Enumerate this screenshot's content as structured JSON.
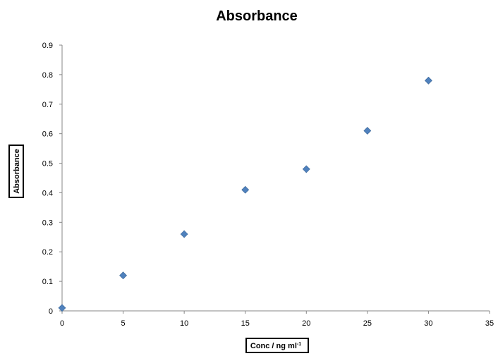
{
  "chart_data": {
    "type": "scatter",
    "title": "Absorbance",
    "xlabel": "Conc / ng ml",
    "xlabel_superscript": "-1",
    "ylabel": "Absorbance",
    "xlim": [
      0,
      35
    ],
    "ylim": [
      0,
      0.9
    ],
    "x_ticks": [
      "0",
      "5",
      "10",
      "15",
      "20",
      "25",
      "30",
      "35"
    ],
    "y_ticks": [
      "0",
      "0.1",
      "0.2",
      "0.3",
      "0.4",
      "0.5",
      "0.6",
      "0.7",
      "0.8",
      "0.9"
    ],
    "grid": false,
    "legend": "none",
    "marker": "diamond",
    "series": [
      {
        "color": "#4f81bd",
        "points": [
          {
            "x": 0,
            "y": 0.01
          },
          {
            "x": 5,
            "y": 0.12
          },
          {
            "x": 10,
            "y": 0.26
          },
          {
            "x": 15,
            "y": 0.41
          },
          {
            "x": 20,
            "y": 0.48
          },
          {
            "x": 25,
            "y": 0.61
          },
          {
            "x": 30,
            "y": 0.78
          }
        ]
      }
    ]
  }
}
